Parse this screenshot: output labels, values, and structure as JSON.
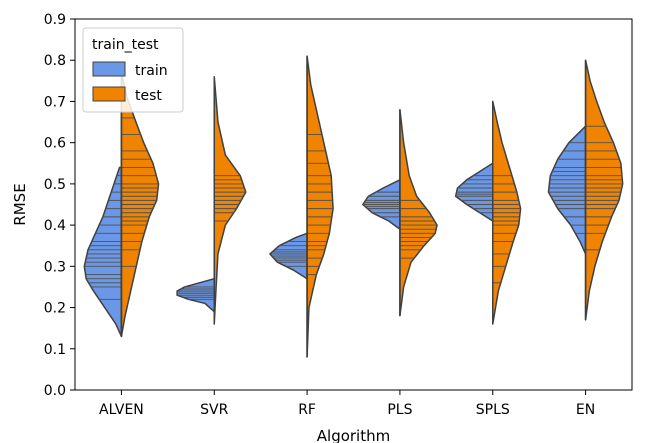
{
  "chart_data": {
    "type": "violin",
    "xlabel": "Algorithm",
    "ylabel": "RMSE",
    "ylim": [
      0,
      0.9
    ],
    "yticks": [
      "0.0",
      "0.1",
      "0.2",
      "0.3",
      "0.4",
      "0.5",
      "0.6",
      "0.7",
      "0.8",
      "0.9"
    ],
    "categories": [
      "ALVEN",
      "SVR",
      "RF",
      "PLS",
      "SPLS",
      "EN"
    ],
    "legend": {
      "title": "train_test",
      "position": "top-left",
      "entries": [
        "train",
        "test"
      ]
    },
    "colors": {
      "train": "#6a97e6",
      "test": "#f08400",
      "outline": "#404040",
      "stick": "#505050"
    },
    "grid": false,
    "series": [
      {
        "name": "train",
        "violins": [
          {
            "category": "ALVEN",
            "range": [
              0.13,
              0.54
            ],
            "profile": [
              [
                0.13,
                0.0
              ],
              [
                0.16,
                0.15
              ],
              [
                0.2,
                0.45
              ],
              [
                0.24,
                0.75
              ],
              [
                0.27,
                0.95
              ],
              [
                0.3,
                1.0
              ],
              [
                0.34,
                0.9
              ],
              [
                0.38,
                0.7
              ],
              [
                0.42,
                0.5
              ],
              [
                0.46,
                0.35
              ],
              [
                0.5,
                0.2
              ],
              [
                0.54,
                0.05
              ]
            ],
            "sticks": [
              0.22,
              0.25,
              0.26,
              0.27,
              0.28,
              0.3,
              0.31,
              0.32,
              0.33,
              0.34,
              0.35,
              0.36,
              0.38,
              0.4,
              0.42,
              0.44,
              0.46,
              0.48,
              0.5,
              0.52
            ]
          },
          {
            "category": "SVR",
            "range": [
              0.19,
              0.27
            ],
            "profile": [
              [
                0.19,
                0.0
              ],
              [
                0.21,
                0.25
              ],
              [
                0.22,
                0.7
              ],
              [
                0.23,
                1.0
              ],
              [
                0.24,
                1.0
              ],
              [
                0.25,
                0.8
              ],
              [
                0.26,
                0.4
              ],
              [
                0.27,
                0.0
              ]
            ],
            "sticks": [
              0.22,
              0.225,
              0.23,
              0.235,
              0.24,
              0.245,
              0.25
            ]
          },
          {
            "category": "RF",
            "range": [
              0.27,
              0.38
            ],
            "profile": [
              [
                0.27,
                0.0
              ],
              [
                0.29,
                0.35
              ],
              [
                0.31,
                0.8
              ],
              [
                0.33,
                1.0
              ],
              [
                0.35,
                0.75
              ],
              [
                0.37,
                0.3
              ],
              [
                0.38,
                0.0
              ]
            ],
            "sticks": [
              0.3,
              0.31,
              0.315,
              0.32,
              0.325,
              0.33,
              0.335,
              0.34,
              0.35,
              0.36
            ]
          },
          {
            "category": "PLS",
            "range": [
              0.39,
              0.51
            ],
            "profile": [
              [
                0.39,
                0.0
              ],
              [
                0.41,
                0.3
              ],
              [
                0.43,
                0.75
              ],
              [
                0.45,
                1.0
              ],
              [
                0.47,
                0.85
              ],
              [
                0.49,
                0.45
              ],
              [
                0.51,
                0.0
              ]
            ],
            "sticks": [
              0.42,
              0.43,
              0.44,
              0.445,
              0.45,
              0.455,
              0.46,
              0.47,
              0.48
            ]
          },
          {
            "category": "SPLS",
            "range": [
              0.41,
              0.55
            ],
            "profile": [
              [
                0.41,
                0.0
              ],
              [
                0.43,
                0.35
              ],
              [
                0.45,
                0.7
              ],
              [
                0.47,
                1.0
              ],
              [
                0.49,
                0.95
              ],
              [
                0.51,
                0.7
              ],
              [
                0.53,
                0.35
              ],
              [
                0.55,
                0.0
              ]
            ],
            "sticks": [
              0.43,
              0.44,
              0.45,
              0.46,
              0.47,
              0.475,
              0.48,
              0.49,
              0.5,
              0.51,
              0.52
            ]
          },
          {
            "category": "EN",
            "range": [
              0.33,
              0.64
            ],
            "profile": [
              [
                0.33,
                0.0
              ],
              [
                0.36,
                0.15
              ],
              [
                0.4,
                0.4
              ],
              [
                0.44,
                0.75
              ],
              [
                0.48,
                1.0
              ],
              [
                0.52,
                0.95
              ],
              [
                0.56,
                0.75
              ],
              [
                0.6,
                0.45
              ],
              [
                0.64,
                0.0
              ]
            ],
            "sticks": [
              0.38,
              0.4,
              0.42,
              0.44,
              0.45,
              0.46,
              0.47,
              0.48,
              0.49,
              0.5,
              0.51,
              0.52,
              0.53,
              0.54,
              0.56,
              0.58,
              0.6
            ]
          }
        ]
      },
      {
        "name": "test",
        "violins": [
          {
            "category": "ALVEN",
            "range": [
              0.13,
              0.77
            ],
            "profile": [
              [
                0.13,
                0.0
              ],
              [
                0.18,
                0.1
              ],
              [
                0.24,
                0.25
              ],
              [
                0.3,
                0.4
              ],
              [
                0.36,
                0.55
              ],
              [
                0.42,
                0.75
              ],
              [
                0.46,
                0.95
              ],
              [
                0.5,
                1.0
              ],
              [
                0.55,
                0.85
              ],
              [
                0.6,
                0.6
              ],
              [
                0.66,
                0.35
              ],
              [
                0.71,
                0.15
              ],
              [
                0.77,
                0.0
              ]
            ],
            "sticks": [
              0.3,
              0.34,
              0.36,
              0.38,
              0.4,
              0.41,
              0.42,
              0.43,
              0.44,
              0.45,
              0.46,
              0.47,
              0.48,
              0.49,
              0.5,
              0.52,
              0.54,
              0.56,
              0.58,
              0.62,
              0.66
            ]
          },
          {
            "category": "SVR",
            "range": [
              0.16,
              0.76
            ],
            "profile": [
              [
                0.16,
                0.0
              ],
              [
                0.25,
                0.05
              ],
              [
                0.33,
                0.1
              ],
              [
                0.4,
                0.3
              ],
              [
                0.44,
                0.6
              ],
              [
                0.48,
                0.85
              ],
              [
                0.52,
                0.7
              ],
              [
                0.57,
                0.3
              ],
              [
                0.65,
                0.1
              ],
              [
                0.76,
                0.0
              ]
            ],
            "sticks": [
              0.41,
              0.43,
              0.44,
              0.45,
              0.46,
              0.47,
              0.48,
              0.49,
              0.5,
              0.51,
              0.52
            ]
          },
          {
            "category": "RF",
            "range": [
              0.08,
              0.81
            ],
            "profile": [
              [
                0.08,
                0.0
              ],
              [
                0.2,
                0.05
              ],
              [
                0.28,
                0.25
              ],
              [
                0.33,
                0.45
              ],
              [
                0.38,
                0.6
              ],
              [
                0.44,
                0.7
              ],
              [
                0.52,
                0.65
              ],
              [
                0.6,
                0.45
              ],
              [
                0.68,
                0.25
              ],
              [
                0.74,
                0.1
              ],
              [
                0.81,
                0.0
              ]
            ],
            "sticks": [
              0.28,
              0.3,
              0.32,
              0.34,
              0.35,
              0.36,
              0.38,
              0.4,
              0.42,
              0.44,
              0.46,
              0.48,
              0.5,
              0.52,
              0.55,
              0.58,
              0.62
            ]
          },
          {
            "category": "PLS",
            "range": [
              0.18,
              0.68
            ],
            "profile": [
              [
                0.18,
                0.0
              ],
              [
                0.25,
                0.1
              ],
              [
                0.31,
                0.3
              ],
              [
                0.35,
                0.65
              ],
              [
                0.38,
                0.95
              ],
              [
                0.4,
                1.0
              ],
              [
                0.43,
                0.8
              ],
              [
                0.47,
                0.45
              ],
              [
                0.52,
                0.25
              ],
              [
                0.6,
                0.1
              ],
              [
                0.68,
                0.0
              ]
            ],
            "sticks": [
              0.32,
              0.34,
              0.35,
              0.36,
              0.37,
              0.38,
              0.39,
              0.4,
              0.41,
              0.42,
              0.44,
              0.46
            ]
          },
          {
            "category": "SPLS",
            "range": [
              0.16,
              0.7
            ],
            "profile": [
              [
                0.16,
                0.0
              ],
              [
                0.24,
                0.15
              ],
              [
                0.3,
                0.35
              ],
              [
                0.36,
                0.55
              ],
              [
                0.4,
                0.7
              ],
              [
                0.44,
                0.75
              ],
              [
                0.48,
                0.65
              ],
              [
                0.54,
                0.45
              ],
              [
                0.6,
                0.25
              ],
              [
                0.65,
                0.12
              ],
              [
                0.7,
                0.0
              ]
            ],
            "sticks": [
              0.26,
              0.3,
              0.33,
              0.36,
              0.38,
              0.4,
              0.41,
              0.42,
              0.43,
              0.44,
              0.45,
              0.46,
              0.48,
              0.5,
              0.52
            ]
          },
          {
            "category": "EN",
            "range": [
              0.17,
              0.8
            ],
            "profile": [
              [
                0.17,
                0.0
              ],
              [
                0.24,
                0.1
              ],
              [
                0.3,
                0.25
              ],
              [
                0.36,
                0.45
              ],
              [
                0.42,
                0.7
              ],
              [
                0.46,
                0.9
              ],
              [
                0.5,
                1.0
              ],
              [
                0.55,
                0.95
              ],
              [
                0.6,
                0.75
              ],
              [
                0.65,
                0.5
              ],
              [
                0.7,
                0.3
              ],
              [
                0.75,
                0.12
              ],
              [
                0.8,
                0.0
              ]
            ],
            "sticks": [
              0.34,
              0.38,
              0.4,
              0.42,
              0.44,
              0.45,
              0.46,
              0.47,
              0.48,
              0.49,
              0.5,
              0.51,
              0.52,
              0.54,
              0.56,
              0.58,
              0.6,
              0.64
            ]
          }
        ]
      }
    ]
  }
}
